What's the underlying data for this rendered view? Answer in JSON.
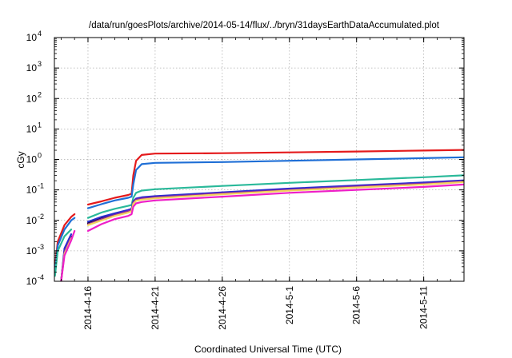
{
  "chart_data": {
    "type": "line",
    "title": "/data/run/goesPlots/archive/2014-05-14/flux/../bryn/31daysEarthDataAccumulated.plot",
    "xlabel": "Coordinated Universal Time (UTC)",
    "ylabel": "cGy",
    "y_scale": "log",
    "ylim": [
      0.0001,
      10000
    ],
    "xlim": [
      "2014-04-13T12:00",
      "2014-05-14T00:00"
    ],
    "x_ticks": [
      "2014-4-16",
      "2014-4-21",
      "2014-4-26",
      "2014-5-1",
      "2014-5-6",
      "2014-5-11"
    ],
    "y_ticks": [
      {
        "base": "10",
        "exp": "-4",
        "value": 0.0001
      },
      {
        "base": "10",
        "exp": "-3",
        "value": 0.001
      },
      {
        "base": "10",
        "exp": "-2",
        "value": 0.01
      },
      {
        "base": "10",
        "exp": "-1",
        "value": 0.1
      },
      {
        "base": "10",
        "exp": "0",
        "value": 1
      },
      {
        "base": "10",
        "exp": "1",
        "value": 10
      },
      {
        "base": "10",
        "exp": "2",
        "value": 100
      },
      {
        "base": "10",
        "exp": "3",
        "value": 1000
      },
      {
        "base": "10",
        "exp": "4",
        "value": 10000
      }
    ],
    "grid": true,
    "series": [
      {
        "color": "#e41a1c",
        "segments": [
          [
            [
              "2014-04-13T13:00",
              0.0003
            ],
            [
              "2014-04-13T18:00",
              0.002
            ],
            [
              "2014-04-14T06:00",
              0.007
            ],
            [
              "2014-04-14T18:00",
              0.013
            ],
            [
              "2014-04-15T00:00",
              0.016
            ]
          ],
          [
            [
              "2014-04-16T00:00",
              0.033
            ],
            [
              "2014-04-17T00:00",
              0.042
            ],
            [
              "2014-04-18T00:00",
              0.055
            ],
            [
              "2014-04-19T00:00",
              0.068
            ],
            [
              "2014-04-19T06:00",
              0.075
            ],
            [
              "2014-04-19T09:00",
              0.3
            ],
            [
              "2014-04-19T14:00",
              0.9
            ],
            [
              "2014-04-20T00:00",
              1.4
            ],
            [
              "2014-04-21T00:00",
              1.55
            ],
            [
              "2014-04-26T00:00",
              1.6
            ],
            [
              "2014-05-01T00:00",
              1.7
            ],
            [
              "2014-05-06T00:00",
              1.82
            ],
            [
              "2014-05-11T00:00",
              1.95
            ],
            [
              "2014-05-14T00:00",
              2.05
            ]
          ]
        ]
      },
      {
        "color": "#1f6fd6",
        "segments": [
          [
            [
              "2014-04-13T13:00",
              0.0002
            ],
            [
              "2014-04-13T18:00",
              0.0015
            ],
            [
              "2014-04-14T06:00",
              0.005
            ],
            [
              "2014-04-14T18:00",
              0.01
            ],
            [
              "2014-04-15T00:00",
              0.012
            ]
          ],
          [
            [
              "2014-04-16T00:00",
              0.025
            ],
            [
              "2014-04-17T00:00",
              0.034
            ],
            [
              "2014-04-18T00:00",
              0.045
            ],
            [
              "2014-04-19T00:00",
              0.055
            ],
            [
              "2014-04-19T06:00",
              0.06
            ],
            [
              "2014-04-19T09:00",
              0.15
            ],
            [
              "2014-04-19T14:00",
              0.45
            ],
            [
              "2014-04-20T00:00",
              0.7
            ],
            [
              "2014-04-21T00:00",
              0.77
            ],
            [
              "2014-04-26T00:00",
              0.82
            ],
            [
              "2014-05-01T00:00",
              0.9
            ],
            [
              "2014-05-06T00:00",
              1.0
            ],
            [
              "2014-05-11T00:00",
              1.1
            ],
            [
              "2014-05-14T00:00",
              1.18
            ]
          ]
        ]
      },
      {
        "color": "#2ab99a",
        "segments": [
          [
            [
              "2014-04-13T13:00",
              0.00015
            ],
            [
              "2014-04-13T18:00",
              0.001
            ],
            [
              "2014-04-14T06:00",
              0.003
            ],
            [
              "2014-04-14T18:00",
              0.005
            ]
          ],
          [
            [
              "2014-04-16T00:00",
              0.012
            ],
            [
              "2014-04-17T00:00",
              0.018
            ],
            [
              "2014-04-18T00:00",
              0.024
            ],
            [
              "2014-04-19T00:00",
              0.03
            ],
            [
              "2014-04-19T06:00",
              0.032
            ],
            [
              "2014-04-19T09:00",
              0.055
            ],
            [
              "2014-04-19T14:00",
              0.08
            ],
            [
              "2014-04-20T00:00",
              0.095
            ],
            [
              "2014-04-21T00:00",
              0.105
            ],
            [
              "2014-04-26T00:00",
              0.135
            ],
            [
              "2014-05-01T00:00",
              0.17
            ],
            [
              "2014-05-06T00:00",
              0.21
            ],
            [
              "2014-05-11T00:00",
              0.26
            ],
            [
              "2014-05-14T00:00",
              0.3
            ]
          ]
        ]
      },
      {
        "color": "#000000",
        "segments": [
          [
            [
              "2014-04-14T00:00",
              0.0001
            ],
            [
              "2014-04-14T06:00",
              0.001
            ],
            [
              "2014-04-14T18:00",
              0.003
            ]
          ],
          [
            [
              "2014-04-16T00:00",
              0.008
            ],
            [
              "2014-04-17T00:00",
              0.012
            ],
            [
              "2014-04-18T00:00",
              0.016
            ],
            [
              "2014-04-19T00:00",
              0.021
            ],
            [
              "2014-04-19T06:00",
              0.023
            ],
            [
              "2014-04-19T09:00",
              0.04
            ],
            [
              "2014-04-19T14:00",
              0.05
            ],
            [
              "2014-04-20T00:00",
              0.055
            ],
            [
              "2014-04-21T00:00",
              0.06
            ],
            [
              "2014-04-26T00:00",
              0.08
            ],
            [
              "2014-05-01T00:00",
              0.105
            ],
            [
              "2014-05-06T00:00",
              0.135
            ],
            [
              "2014-05-11T00:00",
              0.17
            ],
            [
              "2014-05-14T00:00",
              0.2
            ]
          ]
        ]
      },
      {
        "color": "#2b2bd0",
        "segments": [
          [
            [
              "2014-04-14T00:00",
              0.0001
            ],
            [
              "2014-04-14T06:00",
              0.0012
            ],
            [
              "2014-04-14T18:00",
              0.0035
            ]
          ],
          [
            [
              "2014-04-16T00:00",
              0.009
            ],
            [
              "2014-04-17T00:00",
              0.013
            ],
            [
              "2014-04-18T00:00",
              0.017
            ],
            [
              "2014-04-19T00:00",
              0.022
            ],
            [
              "2014-04-19T06:00",
              0.024
            ],
            [
              "2014-04-19T09:00",
              0.042
            ],
            [
              "2014-04-19T14:00",
              0.052
            ],
            [
              "2014-04-20T00:00",
              0.057
            ],
            [
              "2014-04-21T00:00",
              0.062
            ],
            [
              "2014-04-26T00:00",
              0.083
            ],
            [
              "2014-05-01T00:00",
              0.11
            ],
            [
              "2014-05-06T00:00",
              0.14
            ],
            [
              "2014-05-11T00:00",
              0.175
            ],
            [
              "2014-05-14T00:00",
              0.205
            ]
          ]
        ]
      },
      {
        "color": "#8e2a9e",
        "segments": [
          [
            [
              "2014-04-14T00:00",
              0.0001
            ],
            [
              "2014-04-14T06:00",
              0.0009
            ],
            [
              "2014-04-14T18:00",
              0.0028
            ]
          ],
          [
            [
              "2014-04-16T00:00",
              0.0075
            ],
            [
              "2014-04-17T00:00",
              0.011
            ],
            [
              "2014-04-18T00:00",
              0.015
            ],
            [
              "2014-04-19T00:00",
              0.02
            ],
            [
              "2014-04-19T06:00",
              0.022
            ],
            [
              "2014-04-19T09:00",
              0.038
            ],
            [
              "2014-04-19T14:00",
              0.048
            ],
            [
              "2014-04-20T00:00",
              0.052
            ],
            [
              "2014-04-21T00:00",
              0.057
            ],
            [
              "2014-04-26T00:00",
              0.077
            ],
            [
              "2014-05-01T00:00",
              0.1
            ],
            [
              "2014-05-06T00:00",
              0.13
            ],
            [
              "2014-05-11T00:00",
              0.16
            ],
            [
              "2014-05-14T00:00",
              0.19
            ]
          ]
        ]
      },
      {
        "color": "#f2d35c",
        "segments": [
          [
            [
              "2014-04-14T00:00",
              0.0001
            ],
            [
              "2014-04-14T06:00",
              0.0008
            ],
            [
              "2014-04-14T18:00",
              0.0025
            ]
          ],
          [
            [
              "2014-04-16T00:00",
              0.007
            ],
            [
              "2014-04-17T00:00",
              0.01
            ],
            [
              "2014-04-18T00:00",
              0.014
            ],
            [
              "2014-04-19T00:00",
              0.018
            ],
            [
              "2014-04-19T06:00",
              0.02
            ],
            [
              "2014-04-19T09:00",
              0.035
            ],
            [
              "2014-04-19T14:00",
              0.044
            ],
            [
              "2014-04-20T00:00",
              0.048
            ],
            [
              "2014-04-21T00:00",
              0.053
            ],
            [
              "2014-04-26T00:00",
              0.072
            ],
            [
              "2014-05-01T00:00",
              0.095
            ],
            [
              "2014-05-06T00:00",
              0.12
            ],
            [
              "2014-05-11T00:00",
              0.15
            ],
            [
              "2014-05-14T00:00",
              0.18
            ]
          ]
        ]
      },
      {
        "color": "#ee1fc8",
        "segments": [
          [
            [
              "2014-04-14T00:00",
              0.0001
            ],
            [
              "2014-04-14T06:00",
              0.0007
            ],
            [
              "2014-04-14T18:00",
              0.0022
            ],
            [
              "2014-04-15T00:00",
              0.0045
            ]
          ],
          [
            [
              "2014-04-16T00:00",
              0.0045
            ],
            [
              "2014-04-17T00:00",
              0.0075
            ],
            [
              "2014-04-18T00:00",
              0.011
            ],
            [
              "2014-04-19T00:00",
              0.014
            ],
            [
              "2014-04-19T06:00",
              0.016
            ],
            [
              "2014-04-19T09:00",
              0.028
            ],
            [
              "2014-04-19T14:00",
              0.036
            ],
            [
              "2014-04-20T00:00",
              0.04
            ],
            [
              "2014-04-21T00:00",
              0.045
            ],
            [
              "2014-04-26T00:00",
              0.06
            ],
            [
              "2014-05-01T00:00",
              0.08
            ],
            [
              "2014-05-06T00:00",
              0.1
            ],
            [
              "2014-05-11T00:00",
              0.125
            ],
            [
              "2014-05-14T00:00",
              0.15
            ]
          ]
        ]
      }
    ]
  }
}
